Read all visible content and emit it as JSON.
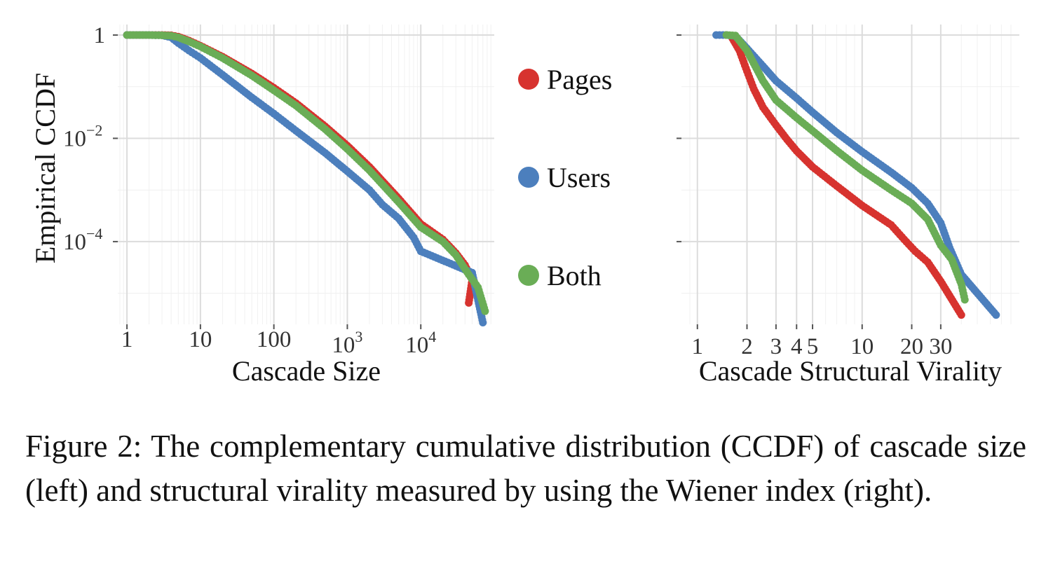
{
  "chart_data": [
    {
      "type": "scatter",
      "panel": "left",
      "xlabel": "Cascade Size",
      "ylabel": "Empirical CCDF",
      "xscale": "log",
      "yscale": "log",
      "xlim": [
        0.75,
        100000
      ],
      "ylim": [
        2.5e-06,
        1.6
      ],
      "grid": true,
      "x_ticks": [
        {
          "value": 1,
          "base": "1",
          "exp": ""
        },
        {
          "value": 10,
          "base": "10",
          "exp": ""
        },
        {
          "value": 100,
          "base": "100",
          "exp": ""
        },
        {
          "value": 1000,
          "base": "10",
          "exp": "3"
        },
        {
          "value": 10000,
          "base": "10",
          "exp": "4"
        }
      ],
      "y_ticks": [
        {
          "value": 1,
          "base": "1",
          "exp": ""
        },
        {
          "value": 0.01,
          "base": "10",
          "exp": "−2"
        },
        {
          "value": 0.0001,
          "base": "10",
          "exp": "−4"
        }
      ],
      "series": [
        {
          "name": "Pages",
          "color": "#d7332f",
          "points": [
            [
              1,
              1
            ],
            [
              2,
              1
            ],
            [
              3,
              1
            ],
            [
              4,
              0.99
            ],
            [
              5,
              0.93
            ],
            [
              7,
              0.78
            ],
            [
              10,
              0.62
            ],
            [
              20,
              0.38
            ],
            [
              50,
              0.18
            ],
            [
              100,
              0.095
            ],
            [
              200,
              0.048
            ],
            [
              500,
              0.017
            ],
            [
              1000,
              0.0072
            ],
            [
              2000,
              0.0028
            ],
            [
              5000,
              0.00068
            ],
            [
              10000,
              0.00022
            ],
            [
              20000,
              0.00011
            ],
            [
              30000,
              6e-05
            ],
            [
              40000,
              3.5e-05
            ],
            [
              50000,
              1.8e-05
            ],
            [
              45000,
              6.5e-06
            ]
          ]
        },
        {
          "name": "Users",
          "color": "#4c7fbd",
          "points": [
            [
              1,
              1
            ],
            [
              2,
              1
            ],
            [
              3,
              0.99
            ],
            [
              4,
              0.9
            ],
            [
              5,
              0.7
            ],
            [
              7,
              0.5
            ],
            [
              10,
              0.36
            ],
            [
              20,
              0.17
            ],
            [
              50,
              0.062
            ],
            [
              100,
              0.03
            ],
            [
              200,
              0.014
            ],
            [
              500,
              0.0052
            ],
            [
              1000,
              0.0023
            ],
            [
              2000,
              0.001
            ],
            [
              3000,
              0.00052
            ],
            [
              5000,
              0.00028
            ],
            [
              8000,
              0.00012
            ],
            [
              10000,
              6.5e-05
            ],
            [
              50000,
              2.5e-05
            ],
            [
              70000,
              2.7e-06
            ]
          ]
        },
        {
          "name": "Both",
          "color": "#6aad56",
          "points": [
            [
              1,
              1
            ],
            [
              2,
              1
            ],
            [
              3,
              0.99
            ],
            [
              4,
              0.97
            ],
            [
              5,
              0.9
            ],
            [
              7,
              0.75
            ],
            [
              10,
              0.6
            ],
            [
              20,
              0.36
            ],
            [
              50,
              0.165
            ],
            [
              100,
              0.085
            ],
            [
              200,
              0.043
            ],
            [
              500,
              0.015
            ],
            [
              1000,
              0.0062
            ],
            [
              2000,
              0.0024
            ],
            [
              5000,
              0.00058
            ],
            [
              10000,
              0.00019
            ],
            [
              20000,
              0.0001
            ],
            [
              30000,
              5.5e-05
            ],
            [
              45000,
              2.3e-05
            ],
            [
              60000,
              1.3e-05
            ],
            [
              75000,
              4.5e-06
            ]
          ]
        }
      ]
    },
    {
      "type": "scatter",
      "panel": "right",
      "xlabel": "Cascade Structural Virality",
      "ylabel": "",
      "xscale": "log",
      "yscale": "log",
      "xlim": [
        0.8,
        90
      ],
      "ylim": [
        2.5e-06,
        1.6
      ],
      "grid": true,
      "x_ticks": [
        {
          "value": 1,
          "base": "1",
          "exp": ""
        },
        {
          "value": 2,
          "base": "2",
          "exp": ""
        },
        {
          "value": 3,
          "base": "3",
          "exp": ""
        },
        {
          "value": 4,
          "base": "4",
          "exp": ""
        },
        {
          "value": 5,
          "base": "5",
          "exp": ""
        },
        {
          "value": 10,
          "base": "10",
          "exp": ""
        },
        {
          "value": 20,
          "base": "20",
          "exp": ""
        },
        {
          "value": 30,
          "base": "30",
          "exp": ""
        }
      ],
      "y_ticks": [
        {
          "value": 1,
          "base": "",
          "exp": ""
        },
        {
          "value": 0.01,
          "base": "",
          "exp": ""
        },
        {
          "value": 0.0001,
          "base": "",
          "exp": ""
        }
      ],
      "series": [
        {
          "name": "Pages",
          "color": "#d7332f",
          "points": [
            [
              1.5,
              1
            ],
            [
              1.6,
              0.96
            ],
            [
              1.8,
              0.5
            ],
            [
              2,
              0.2
            ],
            [
              2.2,
              0.09
            ],
            [
              2.5,
              0.04
            ],
            [
              3,
              0.018
            ],
            [
              3.5,
              0.0095
            ],
            [
              4,
              0.0057
            ],
            [
              5,
              0.0028
            ],
            [
              7,
              0.0012
            ],
            [
              10,
              0.0005
            ],
            [
              15,
              0.00021
            ],
            [
              18,
              0.00011
            ],
            [
              21,
              6.5e-05
            ],
            [
              25,
              4e-05
            ],
            [
              30,
              1.7e-05
            ],
            [
              40,
              3.8e-06
            ]
          ]
        },
        {
          "name": "Users",
          "color": "#4c7fbd",
          "points": [
            [
              1.3,
              1
            ],
            [
              1.5,
              1
            ],
            [
              1.7,
              0.96
            ],
            [
              2,
              0.55
            ],
            [
              2.5,
              0.25
            ],
            [
              3,
              0.13
            ],
            [
              4,
              0.06
            ],
            [
              5,
              0.032
            ],
            [
              7,
              0.013
            ],
            [
              10,
              0.0055
            ],
            [
              15,
              0.0022
            ],
            [
              20,
              0.0011
            ],
            [
              25,
              0.00055
            ],
            [
              30,
              0.00023
            ],
            [
              34,
              7.5e-05
            ],
            [
              40,
              2.3e-05
            ],
            [
              65,
              3.8e-06
            ]
          ]
        },
        {
          "name": "Both",
          "color": "#6aad56",
          "points": [
            [
              1.5,
              1
            ],
            [
              1.7,
              0.98
            ],
            [
              2,
              0.5
            ],
            [
              2.5,
              0.13
            ],
            [
              3,
              0.055
            ],
            [
              4,
              0.025
            ],
            [
              5,
              0.014
            ],
            [
              7,
              0.0058
            ],
            [
              10,
              0.0024
            ],
            [
              15,
              0.001
            ],
            [
              20,
              0.00055
            ],
            [
              25,
              0.00027
            ],
            [
              30,
              8.5e-05
            ],
            [
              35,
              4.5e-05
            ],
            [
              40,
              1.5e-05
            ],
            [
              42,
              7.5e-06
            ]
          ]
        }
      ]
    }
  ],
  "legend": {
    "position": "center",
    "items": [
      {
        "label": "Pages",
        "color": "#d7332f"
      },
      {
        "label": "Users",
        "color": "#4c7fbd"
      },
      {
        "label": "Both",
        "color": "#6aad56"
      }
    ]
  },
  "caption": "Figure 2: The complementary cumulative distribution (CCDF) of cascade size (left) and structural virality measured by using the Wiener index (right)."
}
